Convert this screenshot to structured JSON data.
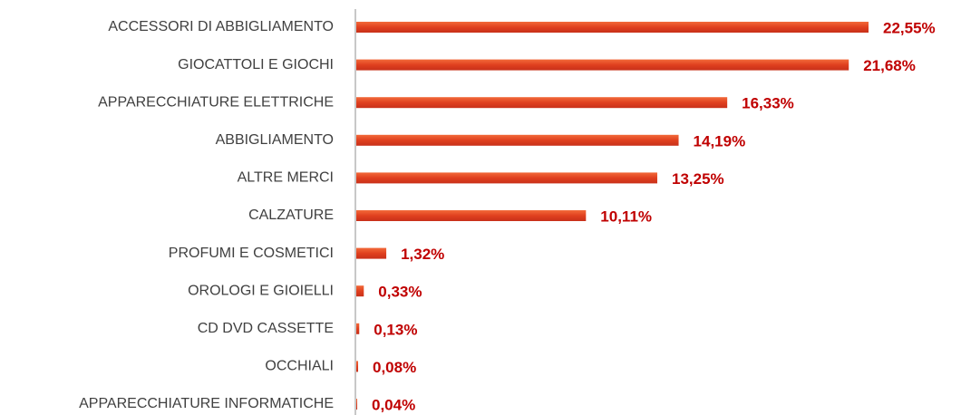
{
  "chart_data": {
    "type": "bar",
    "orientation": "horizontal",
    "categories": [
      "ACCESSORI DI ABBIGLIAMENTO",
      "GIOCATTOLI E GIOCHI",
      "APPARECCHIATURE ELETTRICHE",
      "ABBIGLIAMENTO",
      "ALTRE MERCI",
      "CALZATURE",
      "PROFUMI E COSMETICI",
      "OROLOGI E GIOIELLI",
      "CD DVD CASSETTE",
      "OCCHIALI",
      "APPARECCHIATURE INFORMATICHE"
    ],
    "values": [
      22.55,
      21.68,
      16.33,
      14.19,
      13.25,
      10.11,
      1.32,
      0.33,
      0.13,
      0.08,
      0.04
    ],
    "value_labels": [
      "22,55%",
      "21,68%",
      "16,33%",
      "14,19%",
      "13,25%",
      "10,11%",
      "1,32%",
      "0,33%",
      "0,13%",
      "0,08%",
      "0,04%"
    ],
    "color": "#e0401f"
  }
}
